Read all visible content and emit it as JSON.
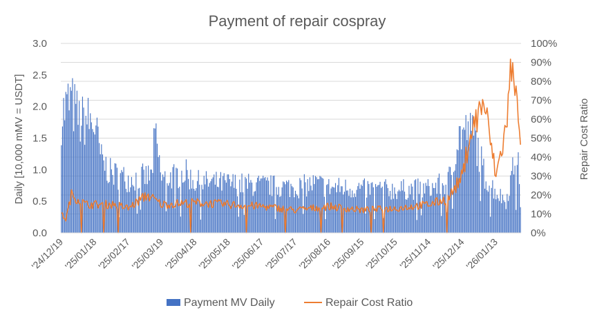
{
  "chart_data": {
    "type": "bar",
    "title": "Payment of repair cospray",
    "ylabel": "Daily [10,000 mMV = USDT]",
    "y2label": "Repair Cost Ratio",
    "ylim": [
      0,
      3.0
    ],
    "y2lim": [
      0,
      1.0
    ],
    "yticks": [
      "0.0",
      "0.5",
      "1.0",
      "1.5",
      "2.0",
      "2.5",
      "3.0"
    ],
    "y2ticks": [
      "0%",
      "10%",
      "20%",
      "30%",
      "40%",
      "50%",
      "60%",
      "70%",
      "80%",
      "90%",
      "100%"
    ],
    "xticks": [
      "'24/12/19",
      "'25/01/18",
      "'25/02/17",
      "'25/03/19",
      "'25/04/18",
      "'25/05/18",
      "'25/06/17",
      "'25/07/17",
      "'25/08/16",
      "'25/09/15",
      "'25/10/15",
      "'25/11/14",
      "'25/12/14",
      "'26/01/13"
    ],
    "start_date": "2024-12-19",
    "legend_position": "bottom",
    "grid": true,
    "series": [
      {
        "name": "Payment MV Daily",
        "type": "bar",
        "axis": "left",
        "color": "#4472C4",
        "key_points": [
          {
            "date": "2024-12-19",
            "value": 1.85
          },
          {
            "date": "2024-12-22",
            "value": 1.95
          },
          {
            "date": "2024-12-27",
            "value": 2.1
          },
          {
            "date": "2025-01-05",
            "value": 1.75
          },
          {
            "date": "2025-01-10",
            "value": 1.8
          },
          {
            "date": "2025-01-18",
            "value": 1.7
          },
          {
            "date": "2025-01-24",
            "value": 1.15
          },
          {
            "date": "2025-02-01",
            "value": 0.95
          },
          {
            "date": "2025-02-17",
            "value": 0.85
          },
          {
            "date": "2025-03-10",
            "value": 0.9
          },
          {
            "date": "2025-03-13",
            "value": 1.55
          },
          {
            "date": "2025-03-19",
            "value": 0.85
          },
          {
            "date": "2025-04-09",
            "value": 0.95
          },
          {
            "date": "2025-04-18",
            "value": 0.8
          },
          {
            "date": "2025-05-18",
            "value": 0.78
          },
          {
            "date": "2025-06-17",
            "value": 0.75
          },
          {
            "date": "2025-07-17",
            "value": 0.72
          },
          {
            "date": "2025-08-05",
            "value": 0.78
          },
          {
            "date": "2025-08-16",
            "value": 0.72
          },
          {
            "date": "2025-09-15",
            "value": 0.7
          },
          {
            "date": "2025-10-15",
            "value": 0.68
          },
          {
            "date": "2025-11-14",
            "value": 0.7
          },
          {
            "date": "2025-12-01",
            "value": 0.8
          },
          {
            "date": "2025-12-10",
            "value": 1.5
          },
          {
            "date": "2025-12-14",
            "value": 1.6
          },
          {
            "date": "2025-12-25",
            "value": 1.55
          },
          {
            "date": "2026-01-03",
            "value": 0.9
          },
          {
            "date": "2026-01-13",
            "value": 0.65
          },
          {
            "date": "2026-01-22",
            "value": 0.5
          },
          {
            "date": "2026-02-01",
            "value": 1.3
          },
          {
            "date": "2026-02-04",
            "value": 0.5
          }
        ]
      },
      {
        "name": "Repair Cost Ratio",
        "type": "line",
        "axis": "right",
        "color": "#ED7D31",
        "key_points": [
          {
            "date": "2024-12-19",
            "value": 0.1
          },
          {
            "date": "2024-12-23",
            "value": 0.07
          },
          {
            "date": "2024-12-28",
            "value": 0.2
          },
          {
            "date": "2025-01-10",
            "value": 0.15
          },
          {
            "date": "2025-01-18",
            "value": 0.15
          },
          {
            "date": "2025-02-05",
            "value": 0.15
          },
          {
            "date": "2025-02-17",
            "value": 0.13
          },
          {
            "date": "2025-03-06",
            "value": 0.2
          },
          {
            "date": "2025-03-19",
            "value": 0.15
          },
          {
            "date": "2025-04-18",
            "value": 0.16
          },
          {
            "date": "2025-05-18",
            "value": 0.15
          },
          {
            "date": "2025-06-17",
            "value": 0.14
          },
          {
            "date": "2025-07-17",
            "value": 0.12
          },
          {
            "date": "2025-08-16",
            "value": 0.14
          },
          {
            "date": "2025-09-15",
            "value": 0.12
          },
          {
            "date": "2025-10-15",
            "value": 0.13
          },
          {
            "date": "2025-11-14",
            "value": 0.15
          },
          {
            "date": "2025-12-01",
            "value": 0.18
          },
          {
            "date": "2025-12-14",
            "value": 0.3
          },
          {
            "date": "2025-12-20",
            "value": 0.5
          },
          {
            "date": "2026-01-02",
            "value": 0.7
          },
          {
            "date": "2026-01-13",
            "value": 0.3
          },
          {
            "date": "2026-01-22",
            "value": 0.55
          },
          {
            "date": "2026-01-26",
            "value": 0.83
          },
          {
            "date": "2026-02-01",
            "value": 0.8
          },
          {
            "date": "2026-02-05",
            "value": 0.3
          }
        ]
      }
    ]
  }
}
